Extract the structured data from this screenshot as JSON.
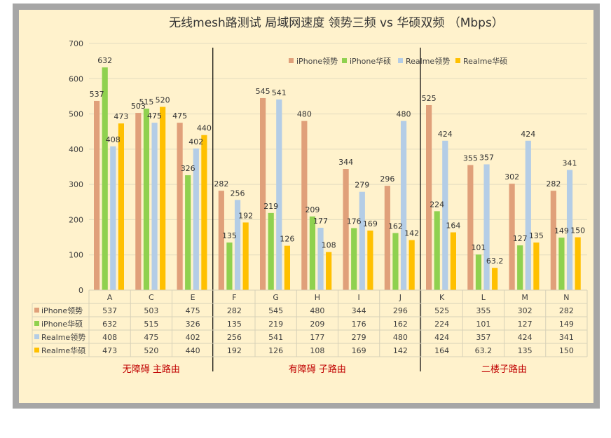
{
  "chart_data": {
    "type": "bar",
    "title": "无线mesh路测试 局域网速度 领势三频 vs 华硕双频   （Mbps）",
    "categories": [
      "A",
      "C",
      "E",
      "F",
      "G",
      "H",
      "I",
      "J",
      "K",
      "L",
      "M",
      "N"
    ],
    "ylim": [
      0,
      700
    ],
    "yticks": [
      0,
      100,
      200,
      300,
      400,
      500,
      600,
      700
    ],
    "grid": true,
    "legend_position": "top-right",
    "series": [
      {
        "name": "iPhone领势",
        "color": "#e0a07a",
        "values": [
          537,
          503,
          475,
          282,
          545,
          480,
          344,
          296,
          525,
          355,
          302,
          282
        ]
      },
      {
        "name": "iPhone华硕",
        "color": "#8fd14f",
        "values": [
          632,
          515,
          326,
          135,
          219,
          209,
          176,
          162,
          224,
          101,
          127,
          149
        ]
      },
      {
        "name": "Realme领势",
        "color": "#b4cde6",
        "values": [
          408,
          475,
          402,
          256,
          541,
          177,
          279,
          480,
          424,
          357,
          424,
          341
        ]
      },
      {
        "name": "Realme华硕",
        "color": "#ffc000",
        "values": [
          473,
          520,
          440,
          192,
          126,
          108,
          169,
          142,
          164,
          63.2,
          135,
          150
        ]
      }
    ],
    "groups": [
      {
        "label": "无障碍  主路由",
        "categories": [
          "A",
          "C",
          "E"
        ]
      },
      {
        "label": "有障碍  子路由",
        "categories": [
          "F",
          "G",
          "H",
          "I",
          "J"
        ]
      },
      {
        "label": "二楼子路由",
        "categories": [
          "K",
          "L",
          "M",
          "N"
        ]
      }
    ]
  }
}
